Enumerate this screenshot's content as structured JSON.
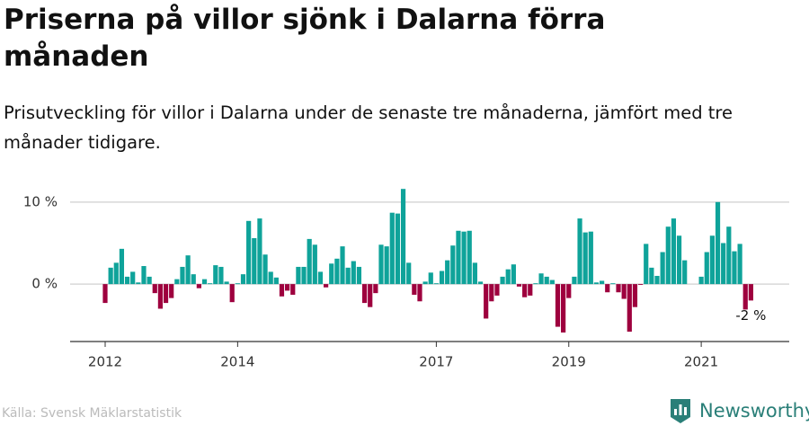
{
  "chart_data": {
    "type": "bar",
    "title": "Priserna på villor sjönk i Dalarna förra månaden",
    "subtitle": "Prisutveckling för villor i Dalarna under de senaste tre månaderna, jämfört med tre månader tidigare.",
    "source": "Källa: Svensk Mäklarstatistik",
    "brand": "Newsworthy",
    "positive_color": "#0fa39a",
    "negative_color": "#9e003e",
    "grid": true,
    "ylim": [
      -7,
      12.5
    ],
    "yticks": [
      {
        "value": 0,
        "label": "0 %"
      },
      {
        "value": 10,
        "label": "10 %"
      }
    ],
    "categories": [
      "2012",
      null,
      null,
      null,
      null,
      null,
      null,
      null,
      null,
      null,
      null,
      null,
      null,
      null,
      null,
      null,
      null,
      null,
      null,
      null,
      null,
      null,
      null,
      null,
      "2014",
      null,
      null,
      null,
      null,
      null,
      null,
      null,
      null,
      null,
      null,
      null,
      null,
      null,
      null,
      null,
      null,
      null,
      null,
      null,
      null,
      null,
      null,
      null,
      null,
      null,
      null,
      null,
      null,
      null,
      null,
      null,
      null,
      null,
      null,
      null,
      "2017",
      null,
      null,
      null,
      null,
      null,
      null,
      null,
      null,
      null,
      null,
      null,
      null,
      null,
      null,
      null,
      null,
      null,
      null,
      null,
      null,
      null,
      null,
      null,
      "2019",
      null,
      null,
      null,
      null,
      null,
      null,
      null,
      null,
      null,
      null,
      null,
      null,
      null,
      null,
      null,
      null,
      null,
      null,
      null,
      null,
      null,
      null,
      null,
      "2021",
      null,
      null,
      null,
      null,
      null,
      null,
      null,
      null,
      null
    ],
    "values": [
      -2.3,
      2,
      2.6,
      4.3,
      0.9,
      1.5,
      0.2,
      2.2,
      0.9,
      -1.1,
      -3,
      -2.3,
      -1.7,
      0.6,
      2.1,
      3.5,
      1.2,
      -0.5,
      0.6,
      0.1,
      2.3,
      2.1,
      0.3,
      -2.2,
      0.1,
      1.2,
      7.7,
      5.6,
      8,
      3.6,
      1.5,
      0.8,
      -1.5,
      -0.8,
      -1.3,
      2.1,
      2.1,
      5.5,
      4.8,
      1.5,
      -0.4,
      2.5,
      3.1,
      4.6,
      2,
      2.8,
      2.1,
      -2.3,
      -2.8,
      -1.1,
      4.8,
      4.6,
      8.7,
      8.6,
      11.6,
      2.6,
      -1.3,
      -2.1,
      0.3,
      1.4,
      0.1,
      1.6,
      2.9,
      4.7,
      6.5,
      6.4,
      6.5,
      2.6,
      0.3,
      -4.2,
      -2.1,
      -1.4,
      0.9,
      1.8,
      2.4,
      -0.3,
      -1.6,
      -1.4,
      0.1,
      1.3,
      0.9,
      0.5,
      -5.2,
      -5.9,
      -1.7,
      0.9,
      8,
      6.3,
      6.4,
      0.2,
      0.4,
      -1,
      0.1,
      -1,
      -1.8,
      -5.8,
      -2.8,
      -0.1,
      4.9,
      2,
      1,
      3.9,
      7,
      8,
      5.9,
      2.9,
      0,
      0,
      0.9,
      3.9,
      5.9,
      10,
      5,
      7,
      4,
      4.9,
      -3.1,
      -2
    ],
    "value_labels": [
      null,
      null,
      null,
      null,
      null,
      null,
      null,
      null,
      null,
      null,
      null,
      null,
      null,
      null,
      null,
      null,
      null,
      null,
      null,
      null,
      null,
      null,
      null,
      null,
      null,
      null,
      null,
      null,
      null,
      null,
      null,
      null,
      null,
      null,
      null,
      null,
      null,
      null,
      null,
      null,
      null,
      null,
      null,
      null,
      null,
      null,
      null,
      null,
      null,
      null,
      null,
      null,
      null,
      null,
      null,
      null,
      null,
      null,
      null,
      null,
      null,
      null,
      null,
      null,
      null,
      null,
      null,
      null,
      null,
      null,
      null,
      null,
      null,
      null,
      null,
      null,
      null,
      null,
      null,
      null,
      null,
      null,
      null,
      null,
      null,
      null,
      null,
      null,
      null,
      null,
      null,
      null,
      null,
      null,
      null,
      null,
      null,
      null,
      null,
      null,
      null,
      null,
      null,
      null,
      null,
      null,
      null,
      null,
      null,
      null,
      null,
      null,
      null,
      null,
      null,
      null,
      null,
      "-2 %"
    ]
  }
}
